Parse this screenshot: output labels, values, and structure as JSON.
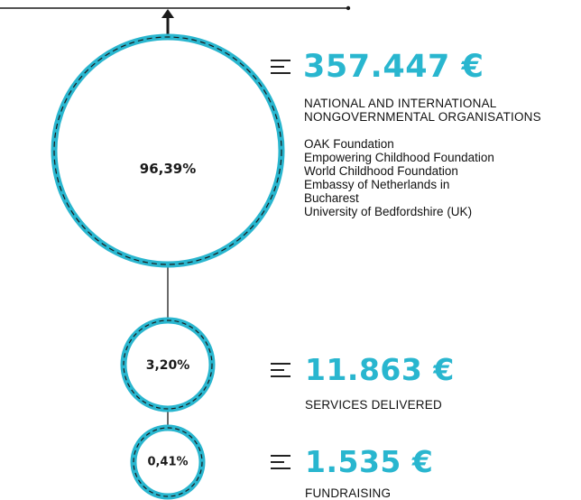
{
  "sources": [
    {
      "percent": "96,39%",
      "amount": "357.447 €",
      "category_lines": [
        "NATIONAL AND INTERNATIONAL",
        "NONGOVERNMENTAL ORGANISATIONS"
      ],
      "donors": [
        "OAK Foundation",
        "Empowering Childhood Foundation",
        "World Childhood Foundation",
        "Embassy of Netherlands in",
        "Bucharest",
        "University of Bedfordshire (UK)"
      ]
    },
    {
      "percent": "3,20%",
      "amount": "11.863 €",
      "category": "SERVICES DELIVERED"
    },
    {
      "percent": "0,41%",
      "amount": "1.535 €",
      "category": "FUNDRAISING"
    }
  ],
  "colors": {
    "accent": "#29b6cf",
    "line": "#1a1a1a"
  },
  "icons": {
    "top_arrow": "up-arrow-icon",
    "amount_marker": "equals-lines-icon"
  }
}
